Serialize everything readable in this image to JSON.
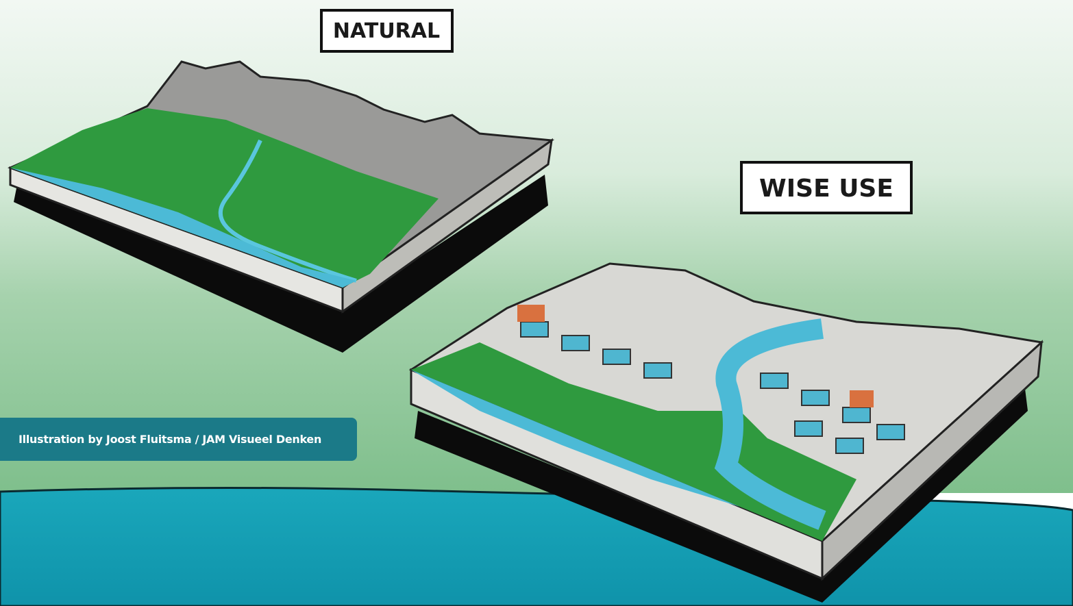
{
  "labels": {
    "natural": "NATURAL",
    "wise_use": "WISE USE"
  },
  "caption": "Illustration by Joost Fluitsma / JAM Visueel Denken"
}
